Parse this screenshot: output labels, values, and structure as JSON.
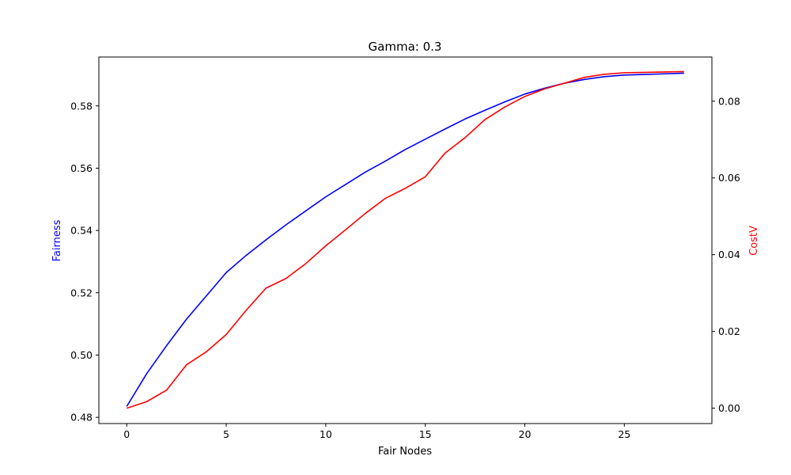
{
  "chart_data": {
    "type": "line",
    "title": "Gamma: 0.3",
    "xlabel": "Fair Nodes",
    "ylabel_left": "Fairness",
    "ylabel_right": "CostV",
    "xlim": [
      -1.4,
      29.4
    ],
    "ylim_left": [
      0.478,
      0.5957
    ],
    "ylim_right": [
      -0.004,
      0.0915
    ],
    "xticks": [
      0,
      5,
      10,
      15,
      20,
      25
    ],
    "yticks_left": [
      0.48,
      0.5,
      0.52,
      0.54,
      0.56,
      0.58
    ],
    "yticks_left_labels": [
      "0.48",
      "0.50",
      "0.52",
      "0.54",
      "0.56",
      "0.58"
    ],
    "yticks_right": [
      0.0,
      0.02,
      0.04,
      0.06,
      0.08
    ],
    "yticks_right_labels": [
      "0.00",
      "0.02",
      "0.04",
      "0.06",
      "0.08"
    ],
    "grid": false,
    "x": [
      0,
      1,
      2,
      3,
      4,
      5,
      6,
      7,
      8,
      9,
      10,
      11,
      12,
      13,
      14,
      15,
      16,
      17,
      18,
      19,
      20,
      21,
      22,
      23,
      24,
      25,
      26,
      27,
      28
    ],
    "series": [
      {
        "axis": "left",
        "color": "#0000ff",
        "values": [
          0.4835,
          0.494,
          0.503,
          0.5115,
          0.519,
          0.5265,
          0.532,
          0.537,
          0.5418,
          0.5463,
          0.5508,
          0.5548,
          0.5588,
          0.5623,
          0.566,
          0.5693,
          0.5726,
          0.5758,
          0.5786,
          0.5813,
          0.5838,
          0.5857,
          0.5873,
          0.5885,
          0.5894,
          0.5899,
          0.5901,
          0.5903,
          0.5905
        ]
      },
      {
        "axis": "right",
        "color": "#ff0000",
        "values": [
          0.0,
          0.0017,
          0.0047,
          0.0113,
          0.0147,
          0.0192,
          0.0255,
          0.0313,
          0.0338,
          0.0377,
          0.0423,
          0.0465,
          0.0508,
          0.0547,
          0.0573,
          0.0603,
          0.0665,
          0.0705,
          0.0752,
          0.0785,
          0.0812,
          0.0832,
          0.0847,
          0.0862,
          0.087,
          0.0874,
          0.0875,
          0.0876,
          0.0877
        ]
      }
    ]
  }
}
